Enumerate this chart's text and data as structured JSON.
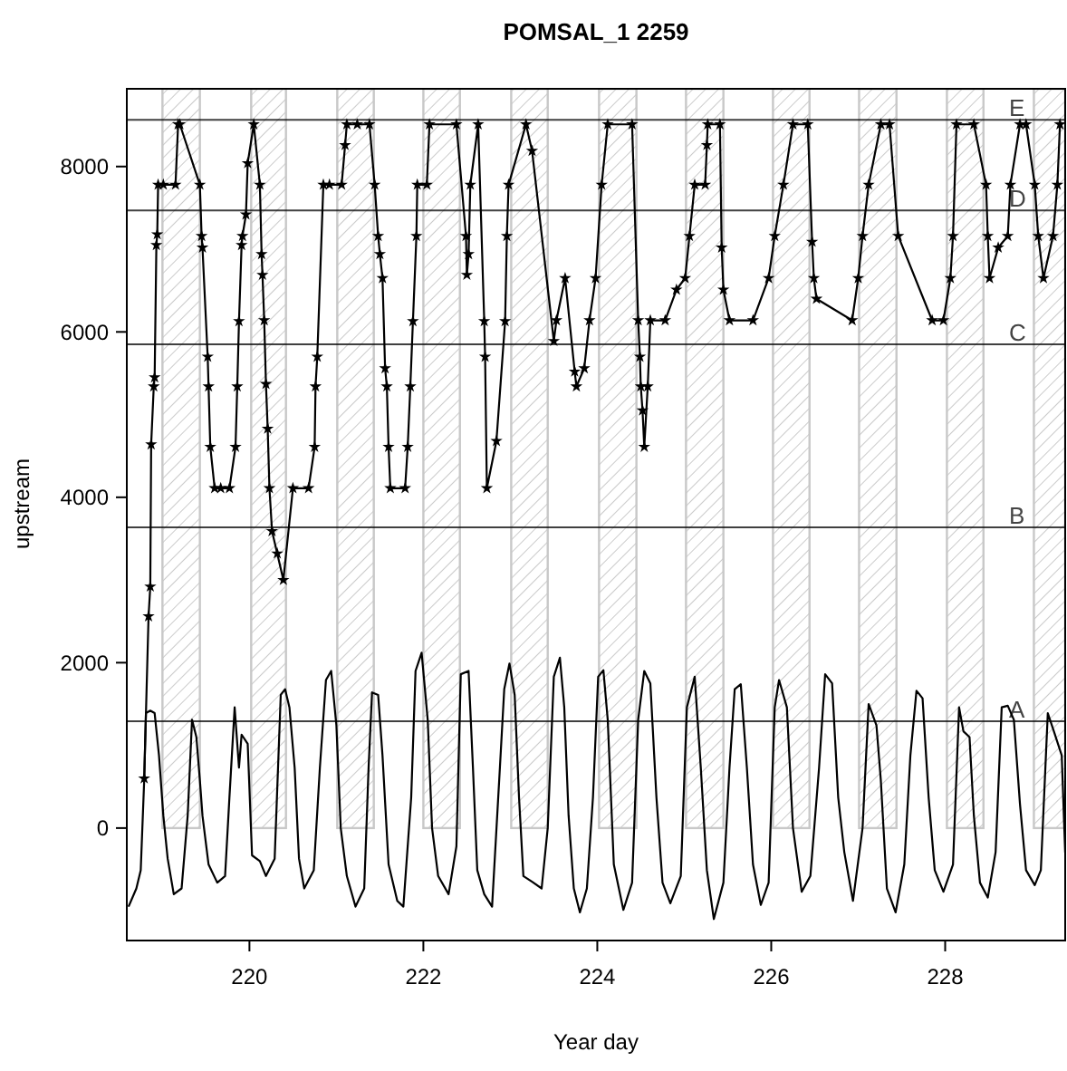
{
  "chart_data": {
    "type": "line",
    "title": "POMSAL_1 2259",
    "xlabel": "Year day",
    "ylabel": "upstream",
    "xlim": [
      218.59,
      229.38
    ],
    "ylim": [
      -1360,
      8940
    ],
    "xticks": [
      220,
      222,
      224,
      226,
      228
    ],
    "yticks": [
      0,
      2000,
      4000,
      6000,
      8000
    ],
    "grid": false,
    "ref_lines": [
      {
        "axis": "y",
        "value": 8565,
        "label": "E",
        "color": "#000000"
      },
      {
        "axis": "y",
        "value": 7470,
        "label": "D",
        "color": "#000000"
      },
      {
        "axis": "y",
        "value": 5850,
        "label": "C",
        "color": "#000000"
      },
      {
        "axis": "y",
        "value": 3636,
        "label": "B",
        "color": "#000000"
      },
      {
        "axis": "y",
        "value": 1292,
        "label": "A",
        "color": "#000000"
      }
    ],
    "bands": [
      {
        "axis": "x",
        "from": 219.0,
        "to": 219.43,
        "color": "#c8c8c8"
      },
      {
        "axis": "x",
        "from": 220.02,
        "to": 220.42,
        "color": "#c8c8c8"
      },
      {
        "axis": "x",
        "from": 221.01,
        "to": 221.43,
        "color": "#c8c8c8"
      },
      {
        "axis": "x",
        "from": 222.0,
        "to": 222.42,
        "color": "#c8c8c8"
      },
      {
        "axis": "x",
        "from": 223.01,
        "to": 223.43,
        "color": "#c8c8c8"
      },
      {
        "axis": "x",
        "from": 224.02,
        "to": 224.45,
        "color": "#c8c8c8"
      },
      {
        "axis": "x",
        "from": 225.02,
        "to": 225.45,
        "color": "#c8c8c8"
      },
      {
        "axis": "x",
        "from": 226.02,
        "to": 226.44,
        "color": "#c8c8c8"
      },
      {
        "axis": "x",
        "from": 227.01,
        "to": 227.44,
        "color": "#c8c8c8"
      },
      {
        "axis": "x",
        "from": 228.02,
        "to": 228.44,
        "color": "#c8c8c8"
      },
      {
        "axis": "x",
        "from": 229.02,
        "to": 229.38,
        "color": "#c8c8c8"
      }
    ],
    "series": [
      {
        "color": "#000000",
        "marker": "none",
        "line_style": "solid",
        "x": [
          218.61,
          218.7,
          218.75,
          218.79,
          218.81,
          218.86,
          218.91,
          218.96,
          219.01,
          219.06,
          219.13,
          219.22,
          219.29,
          219.34,
          219.39,
          219.43,
          219.46,
          219.53,
          219.63,
          219.72,
          219.77,
          219.83,
          219.88,
          219.91,
          219.98,
          220.03,
          220.12,
          220.19,
          220.29,
          220.36,
          220.41,
          220.46,
          220.52,
          220.57,
          220.63,
          220.74,
          220.81,
          220.88,
          220.94,
          221.0,
          221.05,
          221.12,
          221.22,
          221.32,
          221.37,
          221.41,
          221.48,
          221.53,
          221.6,
          221.7,
          221.77,
          221.86,
          221.91,
          221.98,
          222.05,
          222.1,
          222.17,
          222.29,
          222.38,
          222.43,
          222.52,
          222.57,
          222.62,
          222.7,
          222.79,
          222.88,
          222.93,
          222.99,
          223.05,
          223.1,
          223.15,
          223.25,
          223.36,
          223.43,
          223.5,
          223.57,
          223.62,
          223.67,
          223.73,
          223.8,
          223.88,
          223.95,
          224.01,
          224.07,
          224.12,
          224.19,
          224.3,
          224.4,
          224.47,
          224.54,
          224.61,
          224.68,
          224.75,
          224.84,
          224.96,
          225.03,
          225.12,
          225.19,
          225.26,
          225.34,
          225.45,
          225.52,
          225.58,
          225.65,
          225.72,
          225.79,
          225.88,
          225.97,
          226.04,
          226.09,
          226.18,
          226.25,
          226.35,
          226.45,
          226.55,
          226.62,
          226.7,
          226.77,
          226.84,
          226.94,
          227.05,
          227.12,
          227.21,
          227.26,
          227.33,
          227.43,
          227.53,
          227.6,
          227.67,
          227.74,
          227.81,
          227.88,
          227.98,
          228.09,
          228.16,
          228.21,
          228.28,
          228.33,
          228.4,
          228.49,
          228.58,
          228.65,
          228.72,
          228.79,
          228.86,
          228.93,
          229.03,
          229.1,
          229.18,
          229.25,
          229.34,
          229.38
        ],
        "values": [
          -950,
          -730,
          -510,
          580,
          1390,
          1420,
          1390,
          880,
          150,
          -370,
          -800,
          -730,
          150,
          1310,
          1100,
          580,
          150,
          -440,
          -660,
          -580,
          370,
          1460,
          730,
          1130,
          1020,
          -330,
          -400,
          -580,
          -370,
          1610,
          1680,
          1460,
          730,
          -370,
          -730,
          -510,
          730,
          1790,
          1900,
          1240,
          0,
          -580,
          -950,
          -730,
          730,
          1640,
          1610,
          880,
          -440,
          -880,
          -950,
          370,
          1900,
          2120,
          1310,
          0,
          -580,
          -800,
          -220,
          1860,
          1900,
          730,
          -510,
          -800,
          -950,
          730,
          1680,
          1990,
          1610,
          370,
          -580,
          -650,
          -730,
          0,
          1830,
          2060,
          1460,
          150,
          -730,
          -1020,
          -730,
          370,
          1830,
          1910,
          1310,
          -440,
          -990,
          -660,
          1310,
          1900,
          1750,
          370,
          -660,
          -910,
          -580,
          1460,
          1830,
          730,
          -510,
          -1100,
          -660,
          730,
          1680,
          1740,
          730,
          -440,
          -930,
          -660,
          1460,
          1790,
          1460,
          0,
          -770,
          -580,
          730,
          1860,
          1750,
          370,
          -290,
          -880,
          0,
          1500,
          1240,
          580,
          -730,
          -1020,
          -440,
          880,
          1660,
          1570,
          370,
          -510,
          -770,
          -440,
          1460,
          1170,
          1100,
          150,
          -660,
          -840,
          -290,
          1460,
          1480,
          1310,
          290,
          -510,
          -690,
          -510,
          1390,
          1170,
          880,
          -300
        ]
      },
      {
        "color": "#000000",
        "marker": "star",
        "line_style": "solid",
        "x": [
          218.79,
          218.84,
          218.86,
          218.87,
          218.9,
          218.91,
          218.93,
          218.94,
          218.95,
          219.01,
          219.15,
          219.18,
          219.2,
          219.43,
          219.45,
          219.46,
          219.52,
          219.53,
          219.55,
          219.6,
          219.67,
          219.77,
          219.84,
          219.86,
          219.88,
          219.91,
          219.92,
          219.96,
          219.98,
          220.05,
          220.12,
          220.14,
          220.15,
          220.17,
          220.19,
          220.21,
          220.23,
          220.26,
          220.32,
          220.39,
          220.5,
          220.68,
          220.75,
          220.76,
          220.78,
          220.85,
          220.92,
          221.06,
          221.1,
          221.12,
          221.24,
          221.38,
          221.44,
          221.48,
          221.5,
          221.53,
          221.56,
          221.58,
          221.6,
          221.62,
          221.79,
          221.82,
          221.85,
          221.88,
          221.92,
          221.93,
          222.04,
          222.07,
          222.38,
          222.49,
          222.5,
          222.52,
          222.54,
          222.63,
          222.7,
          222.71,
          222.73,
          222.84,
          222.94,
          222.96,
          222.98,
          223.18,
          223.25,
          223.5,
          223.53,
          223.63,
          223.74,
          223.76,
          223.85,
          223.91,
          223.98,
          224.05,
          224.12,
          224.4,
          224.47,
          224.49,
          224.5,
          224.52,
          224.54,
          224.58,
          224.61,
          224.78,
          224.91,
          225.01,
          225.06,
          225.12,
          225.24,
          225.26,
          225.27,
          225.41,
          225.43,
          225.45,
          225.52,
          225.79,
          225.97,
          226.04,
          226.14,
          226.25,
          226.42,
          226.47,
          226.49,
          226.52,
          226.93,
          227.0,
          227.05,
          227.12,
          227.26,
          227.36,
          227.46,
          227.85,
          227.98,
          228.06,
          228.09,
          228.13,
          228.33,
          228.47,
          228.49,
          228.51,
          228.61,
          228.72,
          228.75,
          228.86,
          228.93,
          229.03,
          229.07,
          229.13,
          229.24,
          229.29,
          229.32
        ],
        "values": [
          600,
          2560,
          2920,
          4640,
          5340,
          5450,
          7050,
          7180,
          7780,
          7780,
          7780,
          8510,
          8510,
          7780,
          7160,
          7020,
          5700,
          5340,
          4610,
          4110,
          4110,
          4110,
          4610,
          5340,
          6130,
          7050,
          7160,
          7420,
          8040,
          8510,
          7780,
          6940,
          6690,
          6140,
          5370,
          4830,
          4110,
          3590,
          3320,
          3000,
          4110,
          4110,
          4610,
          5340,
          5700,
          7780,
          7780,
          7780,
          8260,
          8510,
          8510,
          8510,
          7780,
          7160,
          6940,
          6650,
          5560,
          5340,
          4610,
          4110,
          4110,
          4610,
          5340,
          6130,
          7160,
          7780,
          7780,
          8510,
          8510,
          7160,
          6690,
          6940,
          7780,
          8510,
          6130,
          5700,
          4110,
          4680,
          6130,
          7160,
          7780,
          8510,
          8190,
          5890,
          6140,
          6650,
          5520,
          5340,
          5560,
          6140,
          6650,
          7780,
          8510,
          8510,
          6140,
          5700,
          5340,
          5050,
          4610,
          5340,
          6140,
          6140,
          6510,
          6650,
          7160,
          7780,
          7780,
          8260,
          8510,
          8510,
          7020,
          6510,
          6140,
          6140,
          6650,
          7160,
          7780,
          8510,
          8510,
          7090,
          6650,
          6400,
          6140,
          6650,
          7160,
          7780,
          8510,
          8510,
          7160,
          6140,
          6140,
          6650,
          7160,
          8510,
          8510,
          7780,
          7160,
          6650,
          7020,
          7160,
          7780,
          8510,
          8510,
          7780,
          7160,
          6650,
          7160,
          7780,
          8510
        ]
      }
    ]
  }
}
